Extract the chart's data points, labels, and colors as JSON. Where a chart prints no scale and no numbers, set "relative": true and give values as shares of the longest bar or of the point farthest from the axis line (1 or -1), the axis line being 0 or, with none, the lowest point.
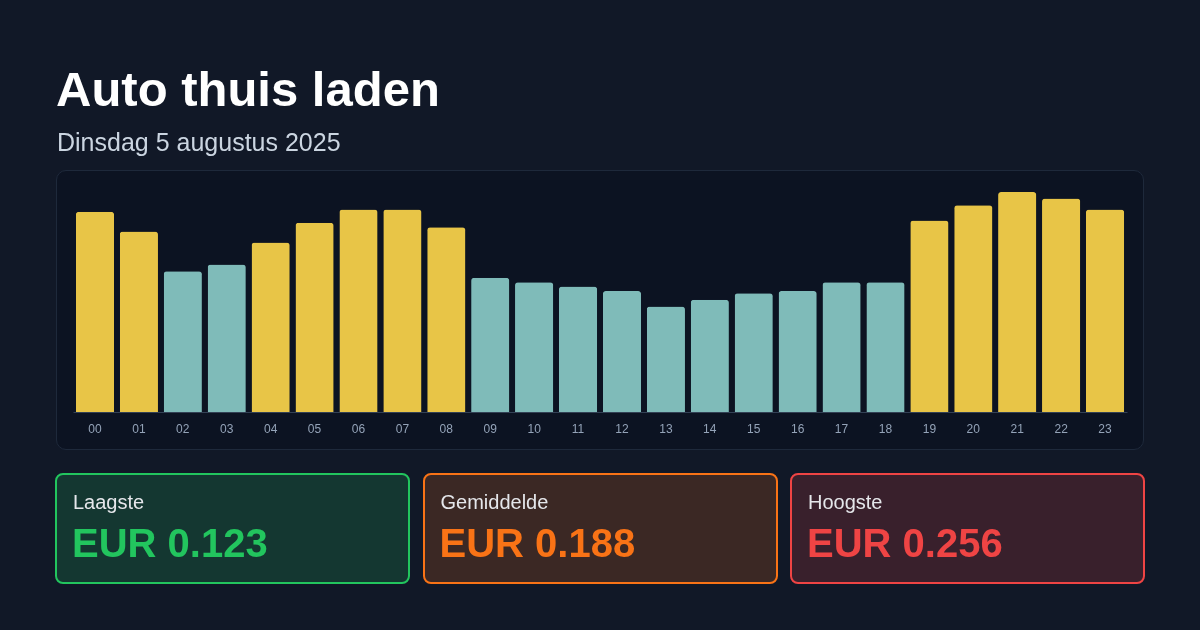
{
  "chart_data": [
    {
      "type": "bar",
      "title": "Auto thuis laden",
      "subtitle": "Dinsdag 5 augustus 2025",
      "relative": true,
      "categories": [
        "00",
        "01",
        "02",
        "03",
        "04",
        "05",
        "06",
        "07",
        "08",
        "09",
        "10",
        "11",
        "12",
        "13",
        "14",
        "15",
        "16",
        "17",
        "18",
        "19",
        "20",
        "21",
        "22",
        "23"
      ],
      "values": [
        0.91,
        0.82,
        0.64,
        0.67,
        0.77,
        0.86,
        0.92,
        0.92,
        0.84,
        0.61,
        0.59,
        0.57,
        0.55,
        0.48,
        0.51,
        0.54,
        0.55,
        0.59,
        0.59,
        0.87,
        0.94,
        1,
        0.97,
        0.92
      ],
      "colors": [
        "#e8c547",
        "#e8c547",
        "#7fbbb9",
        "#7fbbb9",
        "#e8c547",
        "#e8c547",
        "#e8c547",
        "#e8c547",
        "#e8c547",
        "#7fbbb9",
        "#7fbbb9",
        "#7fbbb9",
        "#7fbbb9",
        "#7fbbb9",
        "#7fbbb9",
        "#7fbbb9",
        "#7fbbb9",
        "#7fbbb9",
        "#7fbbb9",
        "#e8c547",
        "#e8c547",
        "#e8c547",
        "#e8c547",
        "#e8c547"
      ]
    },
    {
      "type": "other",
      "title": "Laagste",
      "annotations": [
        "EUR 0.123"
      ],
      "color": "#22c55e"
    },
    {
      "type": "other",
      "title": "Gemiddelde",
      "annotations": [
        "EUR 0.188"
      ],
      "color": "#f97316"
    },
    {
      "type": "other",
      "title": "Hoogste",
      "annotations": [
        "EUR 0.256"
      ],
      "color": "#ef4444"
    }
  ]
}
